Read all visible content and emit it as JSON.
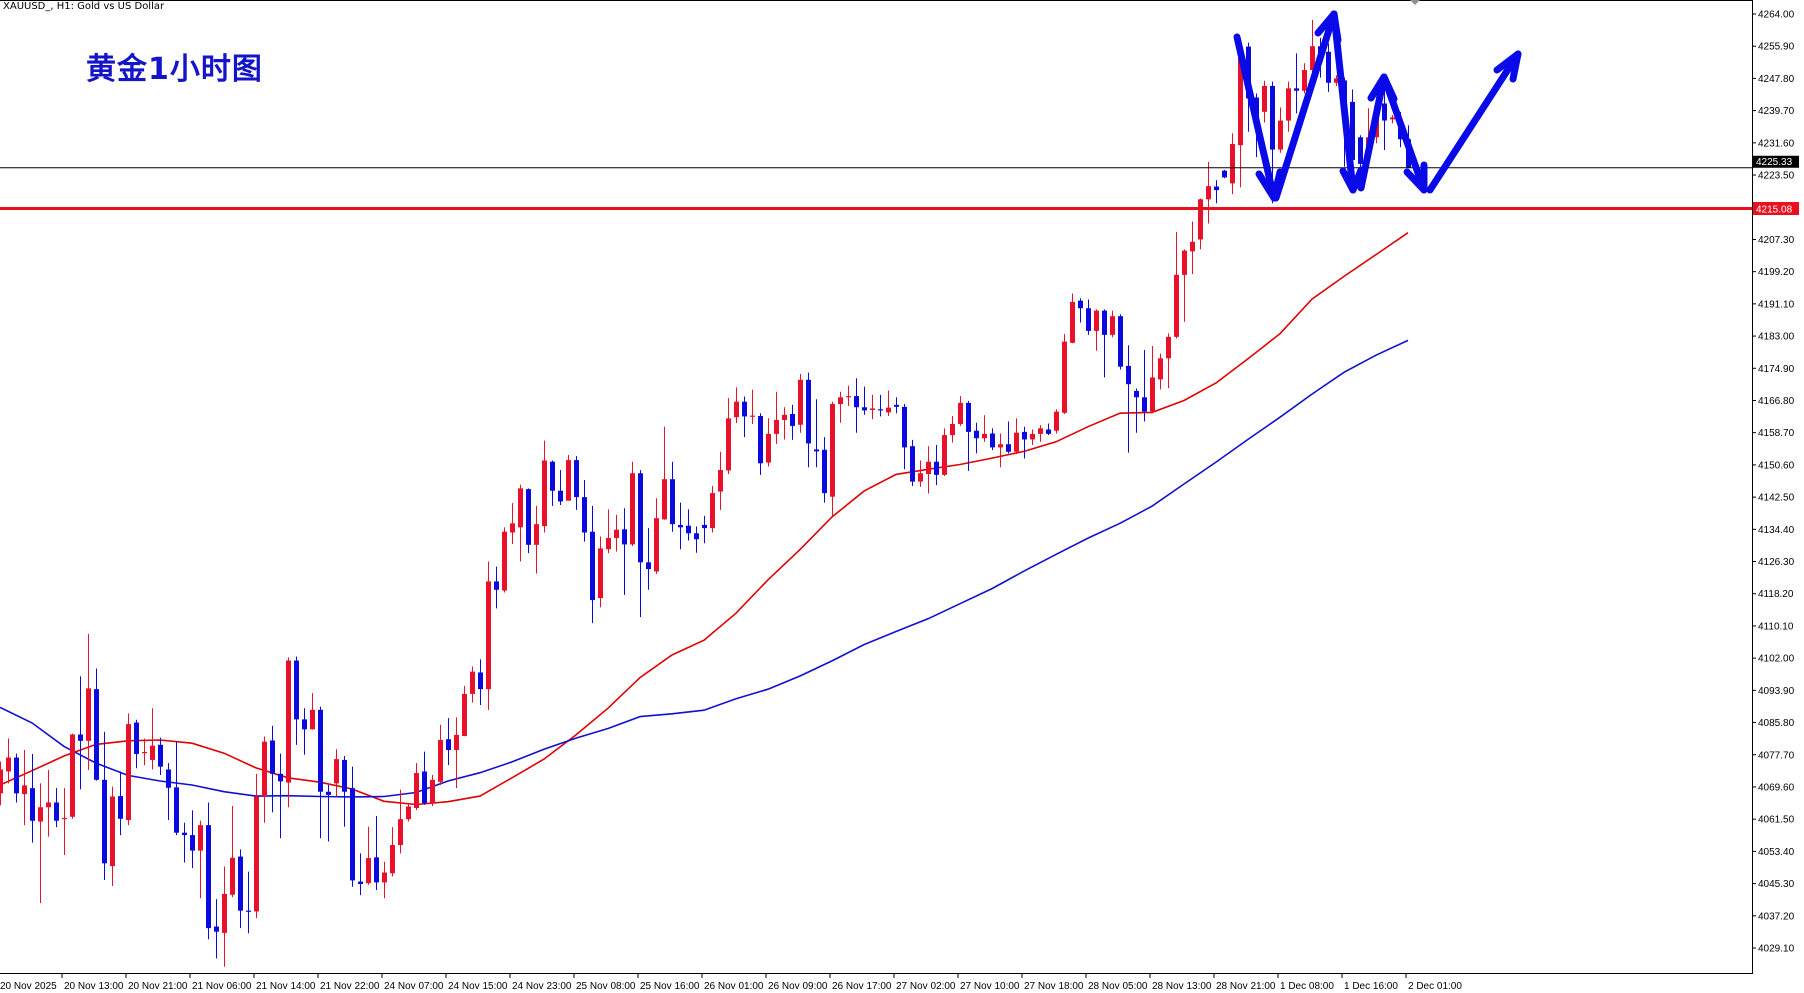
{
  "header": {
    "symbol_line": "XAUUSD_, H1:  Gold vs US Dollar"
  },
  "annotation": {
    "title": "黄金1小时图"
  },
  "colors": {
    "bull": "#e8102a",
    "bear": "#0a0ae0",
    "ma_fast": "#e00000",
    "ma_slow": "#1010d0",
    "support_line": "#e8101e",
    "arrows": "#0a0ae8"
  },
  "chart_data": {
    "type": "candlestick",
    "title": "",
    "symbol": "XAUUSD_",
    "timeframe": "H1",
    "ylim": [
      4029.1,
      4264.0
    ],
    "grid": false,
    "y_ticks": [
      "4264.00",
      "4255.90",
      "4247.80",
      "4239.70",
      "4231.60",
      "4223.50",
      "4207.30",
      "4199.20",
      "4191.10",
      "4183.00",
      "4174.90",
      "4166.80",
      "4158.70",
      "4150.60",
      "4142.50",
      "4134.40",
      "4126.30",
      "4118.20",
      "4110.10",
      "4102.00",
      "4093.90",
      "4085.80",
      "4077.70",
      "4069.60",
      "4061.50",
      "4053.40",
      "4045.30",
      "4037.20",
      "4029.10"
    ],
    "x_ticks": [
      "20 Nov 2025",
      "20 Nov 13:00",
      "20 Nov 21:00",
      "21 Nov 06:00",
      "21 Nov 14:00",
      "21 Nov 22:00",
      "24 Nov 07:00",
      "24 Nov 15:00",
      "24 Nov 23:00",
      "25 Nov 08:00",
      "25 Nov 16:00",
      "26 Nov 01:00",
      "26 Nov 09:00",
      "26 Nov 17:00",
      "27 Nov 02:00",
      "27 Nov 10:00",
      "27 Nov 18:00",
      "28 Nov 05:00",
      "28 Nov 13:00",
      "28 Nov 21:00",
      "1 Dec 08:00",
      "1 Dec 16:00",
      "2 Dec 01:00"
    ],
    "x_tick_every_bars": 8,
    "current_price": {
      "value": 4225.33,
      "label": "4225.33"
    },
    "support_line": {
      "value": 4215.08,
      "label": "4215.08"
    },
    "candles_ohlc": [
      [
        4068,
        4076,
        4065,
        4074
      ],
      [
        4073.5,
        4081.8,
        4070.5,
        4077
      ],
      [
        4077,
        4078,
        4065.7,
        4068
      ],
      [
        4067.8,
        4078.9,
        4060,
        4070
      ],
      [
        4069.3,
        4077.9,
        4055.6,
        4061.1
      ],
      [
        4060.9,
        4070.5,
        4040.4,
        4064.5
      ],
      [
        4064.5,
        4073.9,
        4057.1,
        4065.7
      ],
      [
        4065.7,
        4069.3,
        4059.5,
        4061.1
      ],
      [
        4061.6,
        4069.3,
        4052.5,
        4061.8
      ],
      [
        4062.1,
        4083,
        4061.6,
        4082.8
      ],
      [
        4082.8,
        4097.4,
        4069,
        4081.2
      ],
      [
        4081.2,
        4108.1,
        4073.9,
        4094.4
      ],
      [
        4094.2,
        4099.4,
        4071.2,
        4071.4
      ],
      [
        4071.4,
        4083.5,
        4046.2,
        4050.4
      ],
      [
        4049.7,
        4069.7,
        4044.7,
        4067.2
      ],
      [
        4067.3,
        4073.5,
        4057.5,
        4061.6
      ],
      [
        4061.3,
        4088.1,
        4060,
        4085.4
      ],
      [
        4085.8,
        4086.5,
        4074.3,
        4077.9
      ],
      [
        4078.2,
        4081.8,
        4075.1,
        4078.4
      ],
      [
        4076.4,
        4089.4,
        4074,
        4080
      ],
      [
        4080.2,
        4082,
        4072.6,
        4074.7
      ],
      [
        4074,
        4075.6,
        4061.3,
        4069.4
      ],
      [
        4069.5,
        4081,
        4057.5,
        4058.1
      ],
      [
        4058.1,
        4060.6,
        4050.6,
        4057.5
      ],
      [
        4057.5,
        4063.7,
        4049.2,
        4053.6
      ],
      [
        4053.6,
        4061.1,
        4041.6,
        4060
      ],
      [
        4060,
        4065.7,
        4031.3,
        4034.1
      ],
      [
        4034.5,
        4041.4,
        4026.5,
        4033.2
      ],
      [
        4032.9,
        4049.6,
        4024.4,
        4042.7
      ],
      [
        4042.5,
        4064.8,
        4041.9,
        4051.8
      ],
      [
        4052.1,
        4053.9,
        4034.1,
        4038.5
      ],
      [
        4038.5,
        4048.3,
        4032.8,
        4038.3
      ],
      [
        4038.3,
        4072.9,
        4036.6,
        4067.2
      ],
      [
        4067.3,
        4082.3,
        4060.6,
        4081
      ],
      [
        4081.3,
        4085,
        4063.2,
        4072.9
      ],
      [
        4072.9,
        4078,
        4056.7,
        4071
      ],
      [
        4070.7,
        4102.2,
        4064.5,
        4101.4
      ],
      [
        4101.4,
        4102.4,
        4080.2,
        4086.6
      ],
      [
        4086.6,
        4089.4,
        4077.7,
        4084.1
      ],
      [
        4084.1,
        4093.2,
        4084,
        4089
      ],
      [
        4089,
        4089.8,
        4056.7,
        4068.4
      ],
      [
        4068.4,
        4070.1,
        4055.9,
        4067.6
      ],
      [
        4070.5,
        4079.1,
        4067.2,
        4076.6
      ],
      [
        4076.4,
        4077.4,
        4059.6,
        4068.4
      ],
      [
        4069.3,
        4074.7,
        4044.5,
        4046.1
      ],
      [
        4045.8,
        4052.9,
        4042.4,
        4045.2
      ],
      [
        4045.4,
        4059.6,
        4045,
        4051.7
      ],
      [
        4051.9,
        4062.3,
        4043.7,
        4045.6
      ],
      [
        4045.6,
        4050.8,
        4041.6,
        4048.1
      ],
      [
        4047.9,
        4059.5,
        4047.1,
        4055
      ],
      [
        4055,
        4068.9,
        4052.9,
        4061.5
      ],
      [
        4061.5,
        4065.5,
        4060.9,
        4064.7
      ],
      [
        4064.3,
        4075.6,
        4063.8,
        4073.1
      ],
      [
        4073.5,
        4078.5,
        4065.1,
        4065.5
      ],
      [
        4065.5,
        4072.6,
        4064.8,
        4071.4
      ],
      [
        4070.9,
        4085.2,
        4070.1,
        4081.4
      ],
      [
        4081.6,
        4086.9,
        4075.1,
        4078.9
      ],
      [
        4078.9,
        4087.1,
        4069.3,
        4082.7
      ],
      [
        4082.4,
        4095,
        4082.4,
        4093
      ],
      [
        4093,
        4099.9,
        4090.8,
        4098.6
      ],
      [
        4098.4,
        4101.7,
        4090.2,
        4094.2
      ],
      [
        4094.2,
        4126.3,
        4089,
        4121.3
      ],
      [
        4121.3,
        4125,
        4114.5,
        4119.2
      ],
      [
        4119,
        4134.9,
        4118.5,
        4133.8
      ],
      [
        4133.6,
        4141,
        4130.7,
        4135.9
      ],
      [
        4134.9,
        4145.6,
        4126.3,
        4144.7
      ],
      [
        4144.5,
        4144.7,
        4128.4,
        4130.5
      ],
      [
        4130.5,
        4140.3,
        4123.3,
        4135.7
      ],
      [
        4135.2,
        4156.7,
        4133.6,
        4151.7
      ],
      [
        4151.4,
        4151.7,
        4140.3,
        4144.1
      ],
      [
        4144.1,
        4149.3,
        4140.5,
        4141.4
      ],
      [
        4141.6,
        4153.1,
        4141.6,
        4151.8
      ],
      [
        4151.8,
        4152.8,
        4139.3,
        4142.5
      ],
      [
        4142.5,
        4146.8,
        4131.3,
        4133.6
      ],
      [
        4133.8,
        4140.3,
        4110.8,
        4116.6
      ],
      [
        4117.1,
        4132.6,
        4114.8,
        4129.6
      ],
      [
        4129.4,
        4139.4,
        4128.4,
        4132.2
      ],
      [
        4132.2,
        4138,
        4128.8,
        4134.3
      ],
      [
        4134.4,
        4139.7,
        4117.9,
        4130.6
      ],
      [
        4130.6,
        4151.4,
        4130.2,
        4148.5
      ],
      [
        4148.5,
        4149.3,
        4112.3,
        4126.1
      ],
      [
        4126.1,
        4134.7,
        4119.2,
        4124.4
      ],
      [
        4123.8,
        4142.2,
        4123.2,
        4137.2
      ],
      [
        4136.9,
        4160.2,
        4136.8,
        4147
      ],
      [
        4147,
        4151.4,
        4133.8,
        4135.7
      ],
      [
        4135.5,
        4141.1,
        4129.4,
        4134.9
      ],
      [
        4135.3,
        4139.4,
        4131.6,
        4133.4
      ],
      [
        4133.4,
        4135.1,
        4128.5,
        4131.9
      ],
      [
        4135.5,
        4137.8,
        4130.9,
        4134.7
      ],
      [
        4134.7,
        4145.3,
        4133.6,
        4143.5
      ],
      [
        4143.9,
        4153.9,
        4139.3,
        4149.3
      ],
      [
        4149.2,
        4167.4,
        4148.3,
        4162.3
      ],
      [
        4162.6,
        4170.1,
        4161.1,
        4166.5
      ],
      [
        4166.5,
        4167.8,
        4157.6,
        4162.8
      ],
      [
        4162.8,
        4169.5,
        4160.9,
        4163
      ],
      [
        4162.9,
        4163.6,
        4148.1,
        4151
      ],
      [
        4151.2,
        4162.3,
        4150.2,
        4158.4
      ],
      [
        4158.4,
        4169,
        4155.9,
        4161.9
      ],
      [
        4161.9,
        4165.1,
        4157,
        4163.2
      ],
      [
        4163.4,
        4165.7,
        4156.9,
        4160.4
      ],
      [
        4160.7,
        4173.5,
        4158.7,
        4172
      ],
      [
        4172,
        4173.8,
        4150,
        4156
      ],
      [
        4154.5,
        4167.1,
        4150,
        4154
      ],
      [
        4154.4,
        4157.6,
        4141.1,
        4143.5
      ],
      [
        4142.6,
        4166.5,
        4137.6,
        4165.9
      ],
      [
        4165.9,
        4169,
        4161.2,
        4167.6
      ],
      [
        4167.6,
        4170.5,
        4165.4,
        4167.9
      ],
      [
        4167.9,
        4172.4,
        4158.7,
        4165.1
      ],
      [
        4165.1,
        4170.3,
        4163.2,
        4164.3
      ],
      [
        4164.4,
        4168.2,
        4162.1,
        4164.8
      ],
      [
        4164.6,
        4168.2,
        4162.8,
        4164.5
      ],
      [
        4163.8,
        4169.3,
        4162.9,
        4165
      ],
      [
        4165.7,
        4167.6,
        4163.6,
        4165.2
      ],
      [
        4165.2,
        4165.9,
        4149.5,
        4155
      ],
      [
        4155.3,
        4156.9,
        4145.3,
        4146.4
      ],
      [
        4146.4,
        4151.7,
        4145.1,
        4148.5
      ],
      [
        4148.3,
        4155.3,
        4143.4,
        4151.4
      ],
      [
        4151.4,
        4155.6,
        4145.5,
        4148.1
      ],
      [
        4148.1,
        4159.8,
        4147.8,
        4158.1
      ],
      [
        4158.1,
        4162.9,
        4156.2,
        4160.9
      ],
      [
        4160.9,
        4167.9,
        4160.4,
        4166.2
      ],
      [
        4166.2,
        4166.7,
        4149.1,
        4158.9
      ],
      [
        4159.2,
        4161.2,
        4153.5,
        4157.3
      ],
      [
        4157.3,
        4163.1,
        4156.4,
        4158.4
      ],
      [
        4158.5,
        4159.8,
        4154.3,
        4155
      ],
      [
        4155,
        4158.5,
        4150,
        4155.8
      ],
      [
        4155.8,
        4161.5,
        4153.5,
        4153.9
      ],
      [
        4153.9,
        4162.3,
        4153.3,
        4158.7
      ],
      [
        4158.9,
        4160.2,
        4152.2,
        4157
      ],
      [
        4157,
        4159.5,
        4155.6,
        4158.4
      ],
      [
        4158.4,
        4160.6,
        4156.4,
        4159.8
      ],
      [
        4159.5,
        4161,
        4158.1,
        4158.4
      ],
      [
        4159.2,
        4164.6,
        4158.5,
        4164
      ],
      [
        4163.7,
        4183.5,
        4163.4,
        4181.6
      ],
      [
        4181.3,
        4193.7,
        4181.2,
        4191.6
      ],
      [
        4191.9,
        4192.5,
        4186.4,
        4190
      ],
      [
        4190,
        4192.2,
        4183.3,
        4184.3
      ],
      [
        4184.3,
        4189.7,
        4179.3,
        4189.4
      ],
      [
        4189.4,
        4189.7,
        4172.6,
        4183.3
      ],
      [
        4183.3,
        4189.4,
        4182.7,
        4188
      ],
      [
        4188,
        4188.5,
        4174.6,
        4175.3
      ],
      [
        4175.5,
        4180.7,
        4153.7,
        4170.9
      ],
      [
        4169.2,
        4169.8,
        4158.7,
        4167.6
      ],
      [
        4167.6,
        4179.5,
        4161.5,
        4164
      ],
      [
        4164,
        4180.5,
        4163.6,
        4172.6
      ],
      [
        4172.1,
        4178.6,
        4169.6,
        4177.4
      ],
      [
        4177.4,
        4183.7,
        4169.9,
        4182.8
      ],
      [
        4182.8,
        4209.2,
        4182.4,
        4198.4
      ],
      [
        4198.4,
        4204.8,
        4186.6,
        4204.5
      ],
      [
        4204.3,
        4211.8,
        4198.6,
        4206.7
      ],
      [
        4207.3,
        4217.6,
        4204.8,
        4217.4
      ],
      [
        4217.4,
        4226.8,
        4211.3,
        4220.7
      ],
      [
        4220.6,
        4222.2,
        4216.4,
        4219.7
      ],
      [
        4224.6,
        4224.8,
        4222.7,
        4222.9
      ],
      [
        4221.4,
        4234,
        4218.7,
        4231.3
      ],
      [
        4231,
        4254.9,
        4220.4,
        4254.5
      ],
      [
        4255.8,
        4256.8,
        4234.4,
        4242.8
      ],
      [
        4243,
        4244,
        4228,
        4238
      ],
      [
        4239.4,
        4247.2,
        4236.7,
        4245.9
      ],
      [
        4245.9,
        4247,
        4216.4,
        4229.9
      ],
      [
        4229.9,
        4240.5,
        4229.1,
        4237.2
      ],
      [
        4237.2,
        4247,
        4234.4,
        4245.3
      ],
      [
        4245.3,
        4254.1,
        4239,
        4244.7
      ],
      [
        4244.7,
        4251.6,
        4244,
        4249.9
      ],
      [
        4249.9,
        4262.5,
        4249.1,
        4255.9
      ],
      [
        4255.9,
        4258,
        4248,
        4252
      ],
      [
        4254.5,
        4256.6,
        4244.4,
        4246.7
      ],
      [
        4246.7,
        4248.6,
        4245.9,
        4247.8
      ],
      [
        4247.3,
        4248,
        4225.6,
        4238
      ],
      [
        4241.9,
        4245,
        4220.6,
        4227.3
      ],
      [
        4233,
        4233.5,
        4223.1,
        4226.3
      ],
      [
        4230.6,
        4240.3,
        4229.9,
        4233
      ],
      [
        4233,
        4243.2,
        4231.5,
        4240.7
      ],
      [
        4241.5,
        4245,
        4229.8,
        4237.2
      ],
      [
        4237.5,
        4238.6,
        4236.5,
        4238
      ],
      [
        4236.3,
        4239.4,
        4230.5,
        4232.5
      ],
      [
        4232.5,
        4236,
        4225.2,
        4225.33
      ]
    ],
    "moving_averages": {
      "sample_every_bars": 4,
      "fast": [
        4070.1,
        4073.7,
        4077.4,
        4080.3,
        4081.2,
        4081.4,
        4080.6,
        4078.1,
        4074.4,
        4071.9,
        4070.8,
        4069.1,
        4066,
        4065.2,
        4065.9,
        4067.3,
        4071.9,
        4076.6,
        4082.7,
        4089.4,
        4097.1,
        4102.8,
        4106.5,
        4113.3,
        4121.7,
        4129.3,
        4137.5,
        4144,
        4148.2,
        4149.5,
        4150.7,
        4152.3,
        4154,
        4156.4,
        4160.2,
        4163.6,
        4163.8,
        4166.8,
        4171.2,
        4177.3,
        4183.6,
        4192.3,
        4198,
        4203.5,
        4209
      ],
      "slow": [
        4089.6,
        4085.7,
        4079.8,
        4075.6,
        4072.5,
        4071.1,
        4070.1,
        4068.4,
        4067.3,
        4067.4,
        4067.2,
        4067.1,
        4067.2,
        4068.2,
        4071.1,
        4073.2,
        4075.9,
        4079.1,
        4081.9,
        4084.3,
        4087.3,
        4088,
        4088.9,
        4091.8,
        4094.2,
        4097.5,
        4101.3,
        4105.4,
        4108.7,
        4111.9,
        4115.7,
        4119.5,
        4123.9,
        4128.1,
        4132.2,
        4135.9,
        4140.2,
        4145.8,
        4151.3,
        4157,
        4162.6,
        4168.4,
        4173.9,
        4178.2,
        4181.9
      ]
    }
  }
}
